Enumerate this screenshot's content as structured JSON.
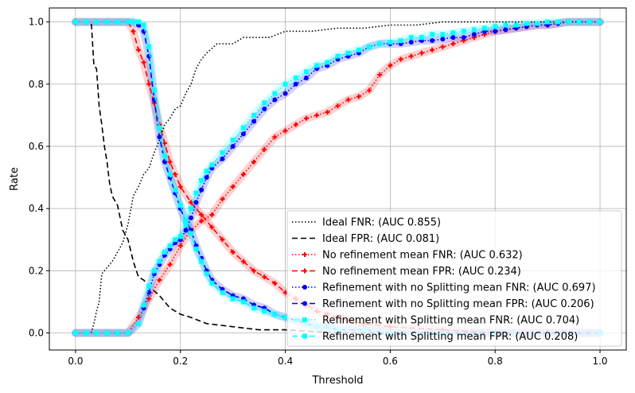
{
  "chart_data": {
    "type": "line",
    "title": "",
    "xlabel": "Threshold",
    "ylabel": "Rate",
    "xlim": [
      -0.05,
      1.05
    ],
    "ylim": [
      -0.055,
      1.045
    ],
    "xticks": [
      0.0,
      0.2,
      0.4,
      0.6,
      0.8,
      1.0
    ],
    "xtick_labels": [
      "0.0",
      "0.2",
      "0.4",
      "0.6",
      "0.8",
      "1.0"
    ],
    "yticks": [
      0.0,
      0.2,
      0.4,
      0.6,
      0.8,
      1.0
    ],
    "ytick_labels": [
      "0.0",
      "0.2",
      "0.4",
      "0.6",
      "0.8",
      "1.0"
    ],
    "grid": true,
    "legend_position": "bottom-right",
    "series": [
      {
        "name": "Ideal FNR: (AUC 0.855)",
        "color": "#000000",
        "style": "dotted",
        "marker": "none",
        "x": [
          0.0,
          0.03,
          0.035,
          0.04,
          0.045,
          0.05,
          0.06,
          0.07,
          0.08,
          0.09,
          0.1,
          0.11,
          0.12,
          0.13,
          0.14,
          0.15,
          0.16,
          0.17,
          0.18,
          0.19,
          0.2,
          0.21,
          0.22,
          0.23,
          0.24,
          0.25,
          0.27,
          0.3,
          0.32,
          0.34,
          0.37,
          0.4,
          0.45,
          0.5,
          0.55,
          0.6,
          0.65,
          0.7,
          0.75,
          0.8,
          0.85,
          1.0
        ],
        "y": [
          0.0,
          0.0,
          0.03,
          0.07,
          0.1,
          0.19,
          0.21,
          0.23,
          0.26,
          0.29,
          0.35,
          0.44,
          0.47,
          0.51,
          0.53,
          0.58,
          0.62,
          0.67,
          0.69,
          0.72,
          0.73,
          0.77,
          0.8,
          0.85,
          0.88,
          0.9,
          0.93,
          0.93,
          0.95,
          0.95,
          0.95,
          0.97,
          0.97,
          0.98,
          0.98,
          0.99,
          0.99,
          1.0,
          1.0,
          1.0,
          1.0,
          1.0
        ]
      },
      {
        "name": "Ideal FPR: (AUC 0.081)",
        "color": "#000000",
        "style": "dashed",
        "marker": "none",
        "x": [
          0.0,
          0.03,
          0.035,
          0.04,
          0.045,
          0.05,
          0.055,
          0.06,
          0.065,
          0.07,
          0.08,
          0.09,
          0.1,
          0.11,
          0.12,
          0.13,
          0.14,
          0.16,
          0.18,
          0.2,
          0.22,
          0.25,
          0.3,
          0.35,
          0.4,
          0.45,
          0.5,
          1.0
        ],
        "y": [
          1.0,
          1.0,
          0.86,
          0.85,
          0.73,
          0.67,
          0.6,
          0.55,
          0.48,
          0.44,
          0.41,
          0.33,
          0.3,
          0.23,
          0.18,
          0.17,
          0.15,
          0.12,
          0.08,
          0.06,
          0.05,
          0.03,
          0.02,
          0.01,
          0.01,
          0.005,
          0.0,
          0.0
        ]
      },
      {
        "name": "No refinement mean FNR: (AUC 0.632)",
        "color": "#ff0000",
        "style": "dotted",
        "marker": "plus",
        "x": [
          0.0,
          0.02,
          0.04,
          0.06,
          0.08,
          0.1,
          0.12,
          0.14,
          0.16,
          0.18,
          0.2,
          0.22,
          0.24,
          0.26,
          0.28,
          0.3,
          0.32,
          0.34,
          0.36,
          0.38,
          0.4,
          0.42,
          0.44,
          0.46,
          0.48,
          0.5,
          0.52,
          0.54,
          0.56,
          0.58,
          0.6,
          0.62,
          0.64,
          0.66,
          0.68,
          0.7,
          0.72,
          0.74,
          0.76,
          0.78,
          0.8,
          0.82,
          0.84,
          0.86,
          0.88,
          0.9,
          0.92,
          0.94,
          0.96,
          0.98,
          1.0
        ],
        "y": [
          0.0,
          0.0,
          0.0,
          0.0,
          0.0,
          0.0,
          0.05,
          0.11,
          0.17,
          0.22,
          0.28,
          0.33,
          0.36,
          0.38,
          0.43,
          0.47,
          0.51,
          0.55,
          0.59,
          0.63,
          0.65,
          0.67,
          0.69,
          0.7,
          0.71,
          0.73,
          0.75,
          0.76,
          0.78,
          0.83,
          0.86,
          0.88,
          0.89,
          0.9,
          0.91,
          0.92,
          0.93,
          0.94,
          0.95,
          0.96,
          0.97,
          0.975,
          0.98,
          0.985,
          0.99,
          0.99,
          0.995,
          1.0,
          1.0,
          1.0,
          1.0
        ]
      },
      {
        "name": "No refinement mean FPR: (AUC 0.234)",
        "color": "#ff0000",
        "style": "dashed",
        "marker": "plus",
        "x": [
          0.0,
          0.02,
          0.04,
          0.06,
          0.08,
          0.1,
          0.11,
          0.12,
          0.13,
          0.14,
          0.15,
          0.16,
          0.17,
          0.18,
          0.19,
          0.2,
          0.22,
          0.24,
          0.26,
          0.28,
          0.3,
          0.32,
          0.34,
          0.36,
          0.38,
          0.4,
          0.42,
          0.44,
          0.46,
          0.48,
          0.5,
          0.52,
          0.55,
          0.6,
          0.7,
          0.8,
          1.0
        ],
        "y": [
          1.0,
          1.0,
          1.0,
          1.0,
          1.0,
          1.0,
          0.97,
          0.91,
          0.87,
          0.8,
          0.74,
          0.67,
          0.61,
          0.55,
          0.51,
          0.47,
          0.42,
          0.38,
          0.34,
          0.3,
          0.26,
          0.23,
          0.2,
          0.18,
          0.16,
          0.13,
          0.11,
          0.09,
          0.07,
          0.06,
          0.05,
          0.04,
          0.03,
          0.02,
          0.01,
          0.0,
          0.0
        ]
      },
      {
        "name": "Refinement with no Splitting mean FNR: (AUC 0.697)",
        "color": "#0000ff",
        "style": "dotted",
        "marker": "circle",
        "x": [
          0.0,
          0.02,
          0.04,
          0.06,
          0.08,
          0.1,
          0.12,
          0.13,
          0.14,
          0.15,
          0.16,
          0.17,
          0.18,
          0.19,
          0.2,
          0.21,
          0.22,
          0.23,
          0.24,
          0.25,
          0.26,
          0.28,
          0.3,
          0.32,
          0.34,
          0.36,
          0.38,
          0.4,
          0.42,
          0.44,
          0.46,
          0.48,
          0.5,
          0.52,
          0.54,
          0.56,
          0.58,
          0.6,
          0.62,
          0.64,
          0.66,
          0.68,
          0.7,
          0.72,
          0.74,
          0.76,
          0.78,
          0.8,
          0.82,
          0.84,
          0.86,
          0.88,
          0.9,
          0.92,
          0.94,
          0.96,
          0.98,
          1.0
        ],
        "y": [
          0.0,
          0.0,
          0.0,
          0.0,
          0.0,
          0.0,
          0.03,
          0.08,
          0.13,
          0.19,
          0.22,
          0.25,
          0.27,
          0.29,
          0.3,
          0.33,
          0.37,
          0.42,
          0.46,
          0.5,
          0.53,
          0.56,
          0.6,
          0.64,
          0.68,
          0.72,
          0.75,
          0.77,
          0.8,
          0.82,
          0.85,
          0.86,
          0.88,
          0.89,
          0.9,
          0.92,
          0.93,
          0.93,
          0.93,
          0.935,
          0.94,
          0.94,
          0.945,
          0.95,
          0.95,
          0.96,
          0.97,
          0.97,
          0.975,
          0.98,
          0.985,
          0.99,
          0.99,
          0.995,
          1.0,
          1.0,
          1.0,
          1.0
        ]
      },
      {
        "name": "Refinement with no Splitting mean FPR: (AUC 0.206)",
        "color": "#0000ff",
        "style": "dashed",
        "marker": "circle",
        "x": [
          0.0,
          0.02,
          0.04,
          0.06,
          0.08,
          0.1,
          0.11,
          0.12,
          0.13,
          0.14,
          0.15,
          0.16,
          0.17,
          0.18,
          0.19,
          0.2,
          0.21,
          0.22,
          0.23,
          0.24,
          0.25,
          0.26,
          0.28,
          0.3,
          0.32,
          0.34,
          0.36,
          0.38,
          0.4,
          0.42,
          0.44,
          0.46,
          0.48,
          0.5,
          0.55,
          0.6,
          0.7,
          0.8,
          1.0
        ],
        "y": [
          1.0,
          1.0,
          1.0,
          1.0,
          1.0,
          1.0,
          1.0,
          0.99,
          0.97,
          0.89,
          0.75,
          0.63,
          0.55,
          0.5,
          0.45,
          0.4,
          0.36,
          0.33,
          0.28,
          0.24,
          0.2,
          0.17,
          0.14,
          0.12,
          0.11,
          0.09,
          0.08,
          0.06,
          0.05,
          0.04,
          0.03,
          0.02,
          0.02,
          0.01,
          0.01,
          0.0,
          0.0,
          0.0,
          0.0
        ]
      },
      {
        "name": "Refinement with Splitting mean FNR: (AUC 0.704)",
        "color": "#00ffff",
        "style": "dotted",
        "marker": "square",
        "x": [
          0.0,
          0.02,
          0.04,
          0.06,
          0.08,
          0.1,
          0.12,
          0.13,
          0.14,
          0.15,
          0.16,
          0.17,
          0.18,
          0.19,
          0.2,
          0.21,
          0.22,
          0.23,
          0.24,
          0.25,
          0.26,
          0.28,
          0.3,
          0.32,
          0.34,
          0.36,
          0.38,
          0.4,
          0.42,
          0.44,
          0.46,
          0.48,
          0.5,
          0.52,
          0.54,
          0.56,
          0.58,
          0.6,
          0.62,
          0.64,
          0.66,
          0.68,
          0.7,
          0.72,
          0.74,
          0.76,
          0.78,
          0.8,
          0.82,
          0.84,
          0.86,
          0.88,
          0.9,
          0.92,
          0.94,
          0.96,
          0.98,
          1.0
        ],
        "y": [
          0.0,
          0.0,
          0.0,
          0.0,
          0.0,
          0.0,
          0.03,
          0.09,
          0.15,
          0.2,
          0.23,
          0.26,
          0.28,
          0.3,
          0.31,
          0.35,
          0.4,
          0.45,
          0.49,
          0.52,
          0.54,
          0.58,
          0.62,
          0.66,
          0.7,
          0.74,
          0.77,
          0.8,
          0.82,
          0.84,
          0.86,
          0.87,
          0.89,
          0.9,
          0.91,
          0.92,
          0.93,
          0.935,
          0.94,
          0.95,
          0.95,
          0.96,
          0.96,
          0.965,
          0.97,
          0.975,
          0.98,
          0.985,
          0.99,
          0.99,
          0.995,
          0.995,
          1.0,
          1.0,
          1.0,
          1.0,
          1.0,
          1.0
        ]
      },
      {
        "name": "Refinement with Splitting mean FPR: (AUC 0.208)",
        "color": "#00ffff",
        "style": "dashed",
        "marker": "square",
        "x": [
          0.0,
          0.02,
          0.04,
          0.06,
          0.08,
          0.1,
          0.11,
          0.12,
          0.13,
          0.14,
          0.15,
          0.16,
          0.17,
          0.18,
          0.19,
          0.2,
          0.21,
          0.22,
          0.23,
          0.24,
          0.25,
          0.26,
          0.28,
          0.3,
          0.32,
          0.34,
          0.36,
          0.38,
          0.4,
          0.42,
          0.44,
          0.46,
          0.48,
          0.5,
          0.55,
          0.6,
          0.7,
          0.8,
          1.0
        ],
        "y": [
          1.0,
          1.0,
          1.0,
          1.0,
          1.0,
          1.0,
          1.0,
          1.0,
          0.99,
          0.92,
          0.78,
          0.66,
          0.57,
          0.51,
          0.46,
          0.41,
          0.36,
          0.32,
          0.27,
          0.23,
          0.19,
          0.16,
          0.13,
          0.11,
          0.1,
          0.08,
          0.07,
          0.06,
          0.05,
          0.04,
          0.03,
          0.02,
          0.02,
          0.01,
          0.01,
          0.0,
          0.0,
          0.0,
          0.0
        ]
      }
    ]
  }
}
